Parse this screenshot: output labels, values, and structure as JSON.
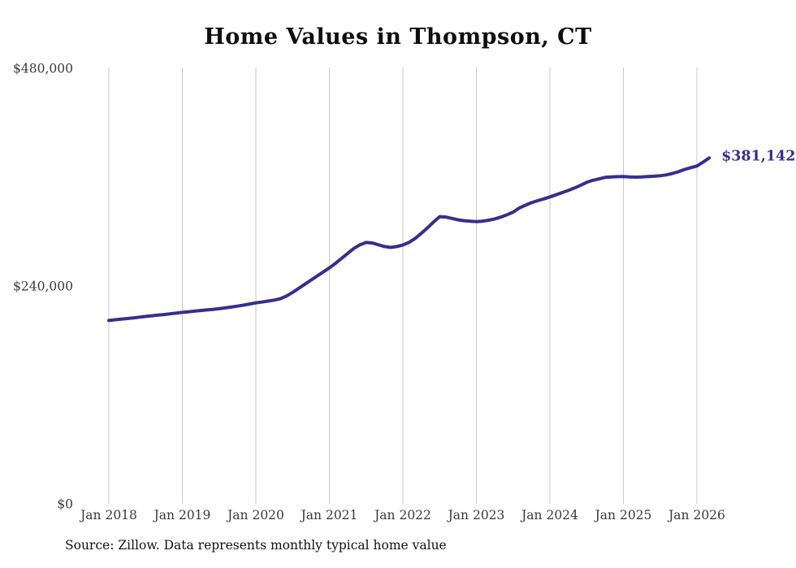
{
  "chart": {
    "title": "Home Values in Thompson, CT",
    "source": "Source: Zillow. Data represents monthly typical home value",
    "end_label": "$381,142"
  },
  "chart_data": {
    "type": "line",
    "title": "Home Values in Thompson, CT",
    "series_name": "Monthly typical home value",
    "end_label": "$381,142",
    "source_note": "Source: Zillow. Data represents monthly typical home value",
    "grid": "vertical-only",
    "legend": "none",
    "ylim": [
      0,
      480000
    ],
    "y_tick_values": [
      0,
      240000,
      480000
    ],
    "y_tick_labels": [
      "$0",
      "$240,000",
      "$480,000"
    ],
    "x_tick_labels": [
      "Jan 2018",
      "Jan 2019",
      "Jan 2020",
      "Jan 2021",
      "Jan 2022",
      "Jan 2023",
      "Jan 2024",
      "Jan 2025",
      "Jan 2026"
    ],
    "colors": {
      "line": "#362f8e",
      "end_label": "#362f8e",
      "grid": "#c9c9c9",
      "tick_text": "#3a3a3a",
      "title_text": "#0e0e0e"
    },
    "x": [
      "2018-01",
      "2018-02",
      "2018-03",
      "2018-04",
      "2018-05",
      "2018-06",
      "2018-07",
      "2018-08",
      "2018-09",
      "2018-10",
      "2018-11",
      "2018-12",
      "2019-01",
      "2019-02",
      "2019-03",
      "2019-04",
      "2019-05",
      "2019-06",
      "2019-07",
      "2019-08",
      "2019-09",
      "2019-10",
      "2019-11",
      "2019-12",
      "2020-01",
      "2020-02",
      "2020-03",
      "2020-04",
      "2020-05",
      "2020-06",
      "2020-07",
      "2020-08",
      "2020-09",
      "2020-10",
      "2020-11",
      "2020-12",
      "2021-01",
      "2021-02",
      "2021-03",
      "2021-04",
      "2021-05",
      "2021-06",
      "2021-07",
      "2021-08",
      "2021-09",
      "2021-10",
      "2021-11",
      "2021-12",
      "2022-01",
      "2022-02",
      "2022-03",
      "2022-04",
      "2022-05",
      "2022-06",
      "2022-07",
      "2022-08",
      "2022-09",
      "2022-10",
      "2022-11",
      "2022-12",
      "2023-01",
      "2023-02",
      "2023-03",
      "2023-04",
      "2023-05",
      "2023-06",
      "2023-07",
      "2023-08",
      "2023-09",
      "2023-10",
      "2023-11",
      "2023-12",
      "2024-01",
      "2024-02",
      "2024-03",
      "2024-04",
      "2024-05",
      "2024-06",
      "2024-07",
      "2024-08",
      "2024-09",
      "2024-10",
      "2024-11",
      "2024-12",
      "2025-01",
      "2025-02",
      "2025-03",
      "2025-04",
      "2025-05",
      "2025-06",
      "2025-07",
      "2025-08",
      "2025-09",
      "2025-10",
      "2025-11",
      "2025-12",
      "2026-01",
      "2026-02",
      "2026-03"
    ],
    "values": [
      202000,
      202800,
      203500,
      204200,
      204900,
      205700,
      206500,
      207200,
      207900,
      208600,
      209400,
      210200,
      211000,
      211600,
      212300,
      213000,
      213700,
      214300,
      215000,
      215900,
      216800,
      217900,
      219000,
      220200,
      221500,
      222400,
      223400,
      224500,
      226000,
      229000,
      233000,
      237500,
      242000,
      246500,
      251000,
      255500,
      260000,
      265000,
      270500,
      276000,
      281500,
      285500,
      288000,
      287500,
      285500,
      283500,
      282500,
      283500,
      285200,
      288000,
      292500,
      298000,
      304000,
      310500,
      316500,
      316000,
      314500,
      313000,
      312000,
      311500,
      311000,
      311500,
      312500,
      314000,
      316000,
      318500,
      321500,
      326000,
      329000,
      331900,
      334000,
      336000,
      338200,
      340500,
      343000,
      345300,
      348000,
      351000,
      354300,
      356500,
      358000,
      359700,
      360200,
      360500,
      360600,
      360300,
      360000,
      360200,
      360600,
      361000,
      361500,
      362500,
      364000,
      366000,
      368500,
      370500,
      372300,
      376500,
      381142
    ]
  }
}
